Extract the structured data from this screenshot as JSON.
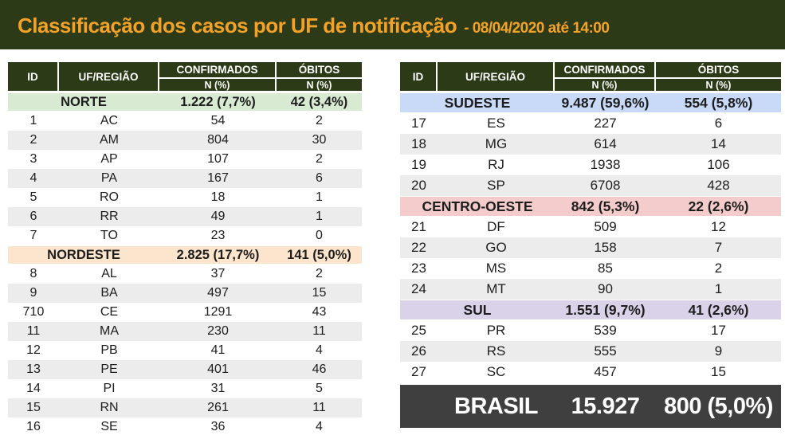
{
  "banner": {
    "title": "Classificação dos casos por UF de notificação",
    "subtitle": "- 08/04/2020 até 14:00"
  },
  "col_headers": {
    "id": "ID",
    "uf": "UF/REGIÃO",
    "confirmados": "CONFIRMADOS",
    "obitos": "ÓBITOS",
    "n_pct": "N (%)"
  },
  "footer": {
    "label": "BRASIL",
    "confirmados": "15.927",
    "obitos": "800 (5,0%)"
  },
  "colors": {
    "banner_bg": "#2d3a18",
    "title": "#f3a229",
    "header_bg": "#2d3a18",
    "stripe": "#ececec",
    "norte": "#d9ead3",
    "nordeste": "#fce5cd",
    "sudeste": "#c9daf8",
    "centro_oeste": "#f4cccc",
    "sul": "#d9d2e9",
    "total_bg": "#3f3f3f"
  },
  "chart_data": {
    "type": "table",
    "title": "Classificação dos casos por UF de notificação",
    "subtitle": "- 08/04/2020 até 14:00",
    "columns": [
      "ID",
      "UF/REGIÃO",
      "CONFIRMADOS N (%)",
      "ÓBITOS N (%)"
    ],
    "tables": [
      {
        "sections": [
          {
            "region": "NORTE",
            "confirmados": "1.222 (7,7%)",
            "obitos": "42 (3,4%)",
            "color": "#d9ead3",
            "rows": [
              {
                "id": "1",
                "uf": "AC",
                "confirmados": "54",
                "obitos": "2"
              },
              {
                "id": "2",
                "uf": "AM",
                "confirmados": "804",
                "obitos": "30"
              },
              {
                "id": "3",
                "uf": "AP",
                "confirmados": "107",
                "obitos": "2"
              },
              {
                "id": "4",
                "uf": "PA",
                "confirmados": "167",
                "obitos": "6"
              },
              {
                "id": "5",
                "uf": "RO",
                "confirmados": "18",
                "obitos": "1"
              },
              {
                "id": "6",
                "uf": "RR",
                "confirmados": "49",
                "obitos": "1"
              },
              {
                "id": "7",
                "uf": "TO",
                "confirmados": "23",
                "obitos": "0"
              }
            ]
          },
          {
            "region": "NORDESTE",
            "confirmados": "2.825 (17,7%)",
            "obitos": "141 (5,0%)",
            "color": "#fce5cd",
            "rows": [
              {
                "id": "8",
                "uf": "AL",
                "confirmados": "37",
                "obitos": "2"
              },
              {
                "id": "9",
                "uf": "BA",
                "confirmados": "497",
                "obitos": "15"
              },
              {
                "id": "710",
                "uf": "CE",
                "confirmados": "1291",
                "obitos": "43"
              },
              {
                "id": "11",
                "uf": "MA",
                "confirmados": "230",
                "obitos": "11"
              },
              {
                "id": "12",
                "uf": "PB",
                "confirmados": "41",
                "obitos": "4"
              },
              {
                "id": "13",
                "uf": "PE",
                "confirmados": "401",
                "obitos": "46"
              },
              {
                "id": "14",
                "uf": "PI",
                "confirmados": "31",
                "obitos": "5"
              },
              {
                "id": "15",
                "uf": "RN",
                "confirmados": "261",
                "obitos": "11"
              },
              {
                "id": "16",
                "uf": "SE",
                "confirmados": "36",
                "obitos": "4"
              }
            ]
          }
        ]
      },
      {
        "sections": [
          {
            "region": "SUDESTE",
            "confirmados": "9.487 (59,6%)",
            "obitos": "554 (5,8%)",
            "color": "#c9daf8",
            "rows": [
              {
                "id": "17",
                "uf": "ES",
                "confirmados": "227",
                "obitos": "6"
              },
              {
                "id": "18",
                "uf": "MG",
                "confirmados": "614",
                "obitos": "14"
              },
              {
                "id": "19",
                "uf": "RJ",
                "confirmados": "1938",
                "obitos": "106"
              },
              {
                "id": "20",
                "uf": "SP",
                "confirmados": "6708",
                "obitos": "428"
              }
            ]
          },
          {
            "region": "CENTRO-OESTE",
            "confirmados": "842 (5,3%)",
            "obitos": "22 (2,6%)",
            "color": "#f4cccc",
            "rows": [
              {
                "id": "21",
                "uf": "DF",
                "confirmados": "509",
                "obitos": "12"
              },
              {
                "id": "22",
                "uf": "GO",
                "confirmados": "158",
                "obitos": "7"
              },
              {
                "id": "23",
                "uf": "MS",
                "confirmados": "85",
                "obitos": "2"
              },
              {
                "id": "24",
                "uf": "MT",
                "confirmados": "90",
                "obitos": "1"
              }
            ]
          },
          {
            "region": "SUL",
            "confirmados": "1.551 (9,7%)",
            "obitos": "41 (2,6%)",
            "color": "#d9d2e9",
            "rows": [
              {
                "id": "25",
                "uf": "PR",
                "confirmados": "539",
                "obitos": "17"
              },
              {
                "id": "26",
                "uf": "RS",
                "confirmados": "555",
                "obitos": "9"
              },
              {
                "id": "27",
                "uf": "SC",
                "confirmados": "457",
                "obitos": "15"
              }
            ]
          }
        ]
      }
    ],
    "total": {
      "label": "BRASIL",
      "confirmados": "15.927",
      "obitos": "800 (5,0%)"
    }
  }
}
